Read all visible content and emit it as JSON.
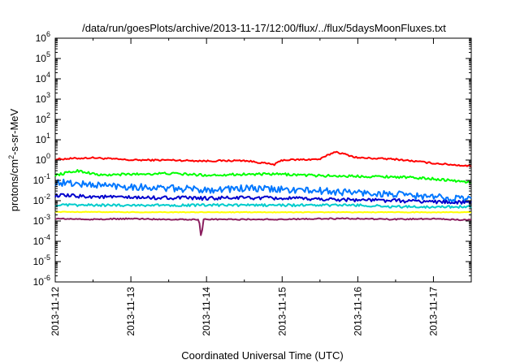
{
  "chart_data": {
    "type": "line",
    "title": "/data/run/goesPlots/archive/2013-11-17/12:00/flux/../flux/5daysMoonFluxes.txt",
    "xlabel": "Coordinated Universal Time (UTC)",
    "ylabel_base": "protons/cm",
    "ylabel_sup": "2",
    "ylabel_rest": "-s-sr-MeV",
    "y_scale": "log",
    "ylim": [
      1e-06,
      1000000.0
    ],
    "y_ticks": [
      {
        "base": "10",
        "exp": "-6"
      },
      {
        "base": "10",
        "exp": "-5"
      },
      {
        "base": "10",
        "exp": "-4"
      },
      {
        "base": "10",
        "exp": "-3"
      },
      {
        "base": "10",
        "exp": "-2"
      },
      {
        "base": "10",
        "exp": "-1"
      },
      {
        "base": "10",
        "exp": "0"
      },
      {
        "base": "10",
        "exp": "1"
      },
      {
        "base": "10",
        "exp": "2"
      },
      {
        "base": "10",
        "exp": "3"
      },
      {
        "base": "10",
        "exp": "4"
      },
      {
        "base": "10",
        "exp": "5"
      },
      {
        "base": "10",
        "exp": "6"
      }
    ],
    "xlim": [
      "2013-11-12",
      "2013-11-17T12:00"
    ],
    "x_ticks": [
      "2013-11-12",
      "2013-11-13",
      "2013-11-14",
      "2013-11-15",
      "2013-11-16",
      "2013-11-17"
    ],
    "grid": false,
    "legend": "none",
    "series": [
      {
        "color": "#ff0000",
        "x": [
          12.0,
          12.5,
          13.0,
          13.5,
          14.0,
          14.5,
          14.9,
          15.0,
          15.5,
          15.7,
          16.0,
          16.5,
          17.0,
          17.5
        ],
        "y": [
          1.1,
          1.3,
          1.0,
          1.0,
          0.9,
          0.95,
          0.6,
          1.0,
          1.1,
          2.6,
          1.3,
          1.1,
          0.7,
          0.5
        ]
      },
      {
        "color": "#00ff00",
        "x": [
          12.0,
          12.3,
          12.6,
          13.0,
          13.5,
          14.0,
          14.5,
          15.0,
          15.5,
          16.0,
          16.5,
          17.0,
          17.5
        ],
        "y": [
          0.18,
          0.3,
          0.18,
          0.2,
          0.22,
          0.18,
          0.2,
          0.2,
          0.17,
          0.16,
          0.15,
          0.12,
          0.08
        ]
      },
      {
        "color": "#0077ff",
        "x": [
          12.0,
          12.5,
          13.0,
          13.5,
          14.0,
          14.5,
          15.0,
          15.5,
          16.0,
          16.5,
          17.0,
          17.5
        ],
        "y": [
          0.08,
          0.06,
          0.05,
          0.04,
          0.035,
          0.04,
          0.035,
          0.03,
          0.025,
          0.02,
          0.015,
          0.012
        ]
      },
      {
        "color": "#0000cc",
        "x": [
          12.0,
          12.5,
          13.0,
          13.5,
          14.0,
          14.5,
          15.0,
          15.5,
          16.0,
          16.5,
          17.0,
          17.5
        ],
        "y": [
          0.018,
          0.016,
          0.014,
          0.014,
          0.013,
          0.014,
          0.013,
          0.012,
          0.011,
          0.01,
          0.009,
          0.008
        ]
      },
      {
        "color": "#00cccc",
        "x": [
          12.0,
          12.5,
          13.0,
          13.5,
          14.0,
          14.5,
          15.0,
          15.5,
          16.0,
          16.5,
          17.0,
          17.5
        ],
        "y": [
          0.006,
          0.006,
          0.006,
          0.006,
          0.006,
          0.006,
          0.006,
          0.006,
          0.006,
          0.005,
          0.005,
          0.005
        ]
      },
      {
        "color": "#ffff00",
        "x": [
          12.0,
          12.5,
          13.0,
          13.5,
          14.0,
          14.5,
          15.0,
          15.5,
          16.0,
          16.5,
          17.0,
          17.5
        ],
        "y": [
          0.0028,
          0.0028,
          0.0027,
          0.0027,
          0.0027,
          0.0027,
          0.0027,
          0.0027,
          0.0027,
          0.0027,
          0.0027,
          0.0027
        ]
      },
      {
        "color": "#8b1f5f",
        "x": [
          12.0,
          12.5,
          13.0,
          13.5,
          13.9,
          13.93,
          13.96,
          14.5,
          15.0,
          15.5,
          16.0,
          16.5,
          17.0,
          17.5
        ],
        "y": [
          0.0013,
          0.0012,
          0.0013,
          0.0012,
          0.0012,
          0.00014,
          0.0012,
          0.0012,
          0.0012,
          0.0013,
          0.0013,
          0.0012,
          0.0013,
          0.0011
        ]
      }
    ]
  }
}
